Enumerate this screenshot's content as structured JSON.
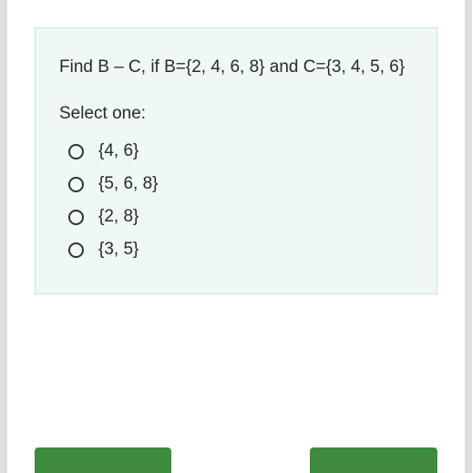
{
  "question": {
    "text": "Find B – C, if B={2, 4, 6, 8} and C={3, 4, 5, 6}",
    "background_color": "#eef8f6",
    "border_color": "#c7e6e0"
  },
  "prompt": "Select one:",
  "options": [
    {
      "label": "{4, 6}"
    },
    {
      "label": "{5, 6, 8}"
    },
    {
      "label": "{2, 8}"
    },
    {
      "label": "{3, 5}"
    }
  ],
  "buttons": {
    "prev": "",
    "next": "",
    "color": "#3e8a3e"
  }
}
